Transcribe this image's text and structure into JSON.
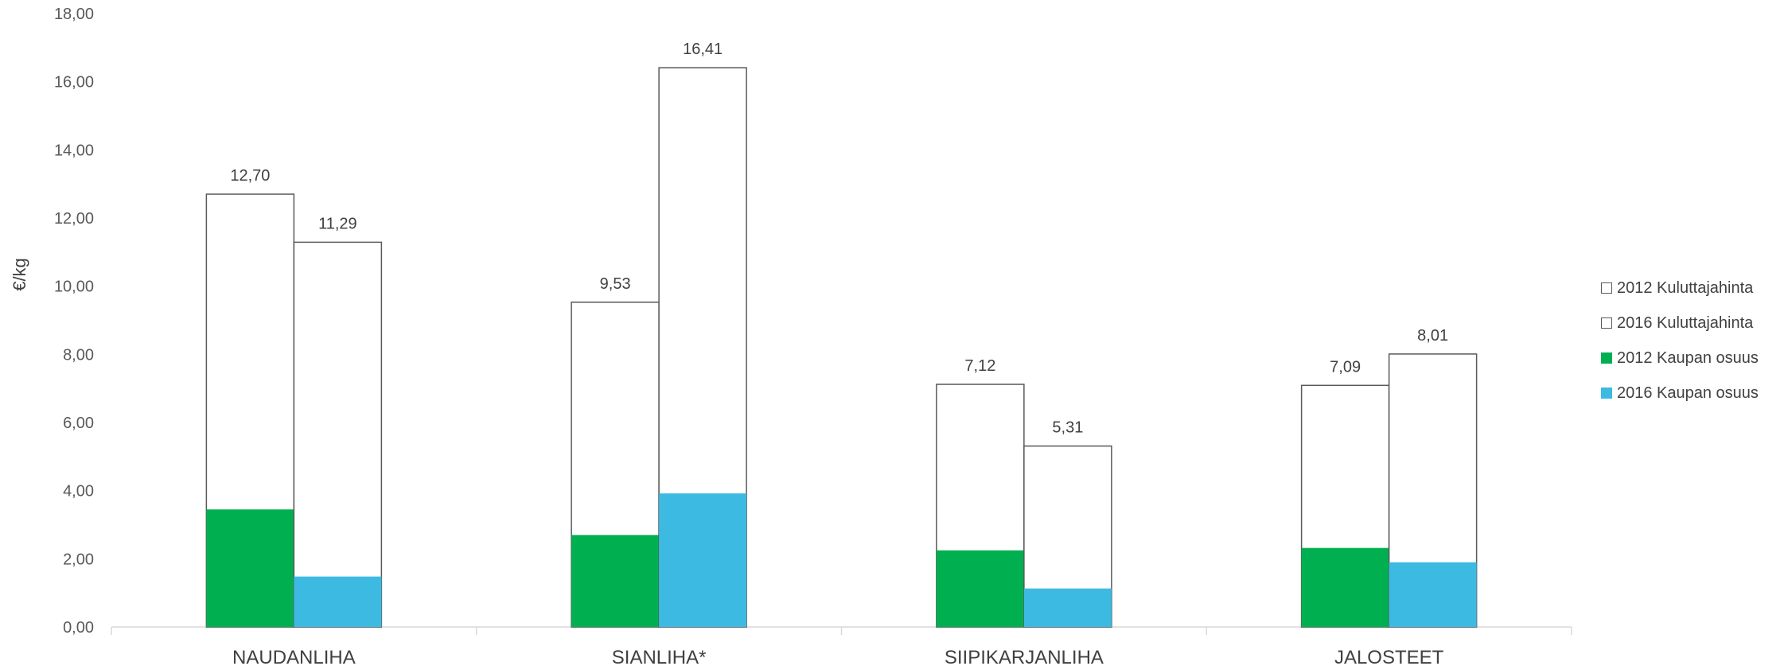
{
  "chart_data": {
    "type": "bar",
    "title": "",
    "xlabel": "",
    "ylabel": "€/kg",
    "ylim": [
      0,
      18
    ],
    "yticks": [
      "0,00",
      "2,00",
      "4,00",
      "6,00",
      "8,00",
      "10,00",
      "12,00",
      "14,00",
      "16,00",
      "18,00"
    ],
    "categories": [
      "NAUDANLIHA",
      "SIANLIHA*",
      "SIIPIKARJANLIHA",
      "JALOSTEET"
    ],
    "series": [
      {
        "name": "2012 Kuluttajahinta",
        "values": [
          12.7,
          9.53,
          7.12,
          7.09
        ],
        "labels": [
          "12,70",
          "9,53",
          "7,12",
          "7,09"
        ],
        "color": "#ffffff",
        "stroke": "#595959"
      },
      {
        "name": "2016 Kuluttajahinta",
        "values": [
          11.29,
          16.41,
          5.31,
          8.01
        ],
        "labels": [
          "11,29",
          "16,41",
          "5,31",
          "8,01"
        ],
        "color": "#ffffff",
        "stroke": "#595959"
      },
      {
        "name": "2012 Kaupan osuus",
        "values": [
          3.45,
          2.7,
          2.25,
          2.32
        ],
        "color": "#00b050"
      },
      {
        "name": "2016 Kaupan osuus",
        "values": [
          1.48,
          3.92,
          1.13,
          1.9
        ],
        "color": "#3dbae2"
      }
    ],
    "grid": false,
    "legend_position": "right"
  }
}
